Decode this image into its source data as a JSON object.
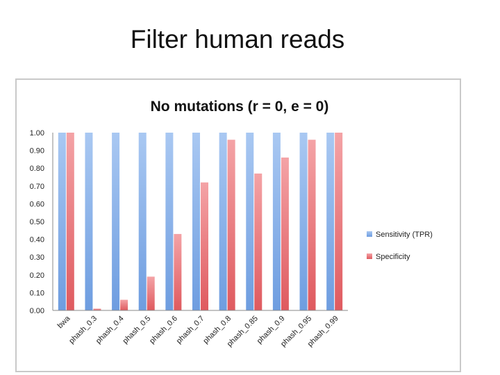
{
  "slide": {
    "title": "Filter human reads"
  },
  "chart_data": {
    "type": "bar",
    "title": "No mutations (r = 0, e = 0)",
    "categories": [
      "bwa",
      "phash_0.3",
      "phash_0.4",
      "phash_0.5",
      "phash_0.6",
      "phash_0.7",
      "phash_0.8",
      "phash_0.85",
      "phash_0.9",
      "phash_0.95",
      "phash_0.99"
    ],
    "series": [
      {
        "name": "Sensitivity (TPR)",
        "color": "#7fa9e6",
        "values": [
          1,
          1,
          1,
          1,
          1,
          1,
          1,
          1,
          1,
          1,
          1
        ]
      },
      {
        "name": "Specificity",
        "color": "#e66a6e",
        "values": [
          1.0,
          0.01,
          0.06,
          0.19,
          0.43,
          0.72,
          0.96,
          0.77,
          0.86,
          0.96,
          1.0
        ]
      }
    ],
    "ylim": [
      0,
      1
    ],
    "yticks": [
      "0.00",
      "0.10",
      "0.20",
      "0.30",
      "0.40",
      "0.50",
      "0.60",
      "0.70",
      "0.80",
      "0.90",
      "1.00"
    ],
    "grid": false,
    "legend": "right",
    "xlabel": "",
    "ylabel": ""
  }
}
